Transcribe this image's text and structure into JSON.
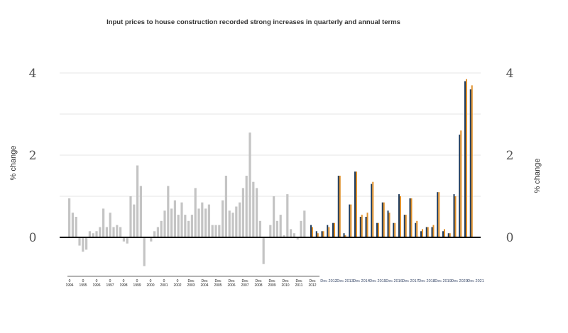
{
  "chart_data": {
    "type": "bar",
    "title": "Input prices to house construction recorded strong increases in quarterly and annual terms",
    "ylabel_left": "% change",
    "ylabel_right": "% change",
    "ylim": [
      -0.75,
      4.0
    ],
    "yticks_left": [
      "4",
      "2",
      "0"
    ],
    "yticks_right": [
      "4",
      "2",
      "0"
    ],
    "grid": true,
    "legend": "none",
    "colors": {
      "history": "#c4c4c4",
      "navy": "#1f3b5c",
      "orange": "#e0902a",
      "zero_line": "#000000",
      "grid": "#dddddd"
    },
    "history_year_labels": [
      {
        "label": "0",
        "sub": "1994"
      },
      {
        "label": "0",
        "sub": "1995"
      },
      {
        "label": "0",
        "sub": "1996"
      },
      {
        "label": "0",
        "sub": "1997"
      },
      {
        "label": "0",
        "sub": "1998"
      },
      {
        "label": "0",
        "sub": "1999"
      },
      {
        "label": "0",
        "sub": "2000"
      },
      {
        "label": "0",
        "sub": "2001"
      },
      {
        "label": "0",
        "sub": "2002"
      },
      {
        "label": "Dec",
        "sub": "2003"
      },
      {
        "label": "Dec",
        "sub": "2004"
      },
      {
        "label": "Dec",
        "sub": "2005"
      },
      {
        "label": "Dec",
        "sub": "2006"
      },
      {
        "label": "Dec",
        "sub": "2007"
      },
      {
        "label": "Dec",
        "sub": "2008"
      },
      {
        "label": "Dec",
        "sub": "2009"
      },
      {
        "label": "Dec",
        "sub": "2010"
      },
      {
        "label": "Dec",
        "sub": "2011"
      },
      {
        "label": "Dec",
        "sub": "2012"
      }
    ],
    "history_values": [
      0.95,
      0.6,
      0.5,
      -0.2,
      -0.35,
      -0.3,
      0.15,
      0.1,
      0.15,
      0.25,
      0.7,
      0.25,
      0.6,
      0.25,
      0.3,
      0.25,
      -0.1,
      -0.15,
      1.0,
      0.8,
      1.75,
      1.25,
      -0.7,
      0.0,
      -0.1,
      0.15,
      0.25,
      0.4,
      0.65,
      1.25,
      0.7,
      0.9,
      0.55,
      0.85,
      0.55,
      0.4,
      0.55,
      1.2,
      0.7,
      0.85,
      0.7,
      0.8,
      0.3,
      0.3,
      0.3,
      0.9,
      1.5,
      0.65,
      0.6,
      0.75,
      0.85,
      1.2,
      1.5,
      2.55,
      1.35,
      1.2,
      0.4,
      -0.65,
      0.0,
      0.3,
      1.0,
      0.4,
      0.55,
      0.05,
      1.05,
      0.2,
      0.1,
      -0.05,
      0.4,
      0.65
    ],
    "recent_year_labels": [
      "Dec 2012",
      "Dec 2013",
      "Dec 2014",
      "Dec 2015",
      "Dec 2016",
      "Dec 2017",
      "Dec 2018",
      "Dec 2019",
      "Dec 2020",
      "Dec 2021"
    ],
    "recent_series": [
      {
        "color": "navy",
        "values": [
          0.3,
          0.15,
          0.15,
          0.3,
          0.35,
          1.5,
          0.1,
          0.8,
          1.6,
          0.5,
          0.5,
          1.3,
          0.35,
          0.85,
          0.65,
          0.35,
          1.05,
          0.55,
          0.95,
          0.35,
          0.15,
          0.25,
          0.25,
          1.1,
          0.15,
          0.1,
          1.05,
          2.5,
          3.8,
          3.6
        ]
      },
      {
        "color": "orange",
        "values": [
          0.25,
          0.1,
          0.15,
          0.25,
          0.35,
          1.5,
          0.05,
          0.8,
          1.6,
          0.55,
          0.6,
          1.35,
          0.35,
          0.85,
          0.6,
          0.35,
          1.0,
          0.55,
          0.95,
          0.4,
          0.2,
          0.25,
          0.3,
          1.1,
          0.2,
          0.1,
          1.0,
          2.6,
          3.85,
          3.7
        ]
      }
    ]
  }
}
